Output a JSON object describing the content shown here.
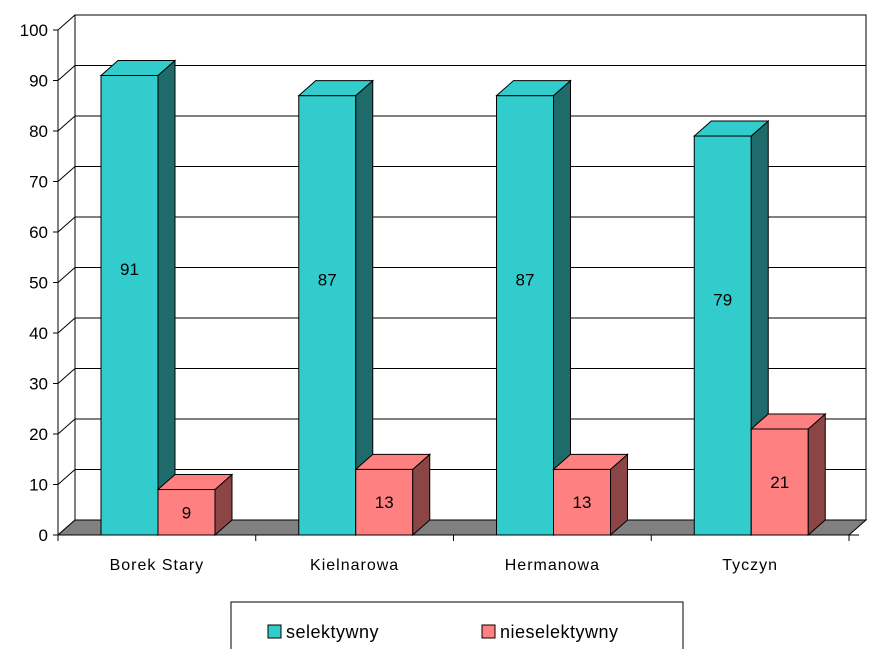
{
  "chart_data": {
    "type": "bar",
    "categories": [
      "Borek Stary",
      "Kielnarowa",
      "Hermanowa",
      "Tyczyn"
    ],
    "series": [
      {
        "name": "selektywny",
        "values": [
          91,
          87,
          87,
          79
        ],
        "color": "#33cccc",
        "side_color": "#1f6b6b"
      },
      {
        "name": "nieselektywny",
        "values": [
          9,
          13,
          13,
          21
        ],
        "color": "#ff8080",
        "side_color": "#8b4545"
      }
    ],
    "ylim": [
      0,
      100
    ],
    "yticks": [
      "0",
      "10",
      "20",
      "30",
      "40",
      "50",
      "60",
      "70",
      "80",
      "90",
      "100"
    ],
    "data_labels": [
      [
        "91",
        "87",
        "87",
        "79"
      ],
      [
        "9",
        "13",
        "13",
        "21"
      ]
    ],
    "grid": true,
    "floor_color": "#808080",
    "legend_position": "bottom",
    "title": "",
    "xlabel": "",
    "ylabel": ""
  }
}
